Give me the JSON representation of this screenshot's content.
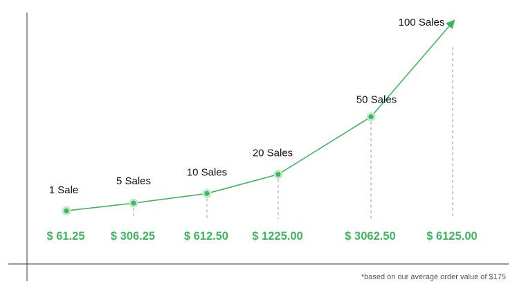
{
  "chart_data": {
    "type": "line",
    "colors": {
      "line": "#3fb560",
      "point": "#3fb560",
      "point_halo": "#bfe8c9",
      "value_label": "#3fb560",
      "sales_label": "#111111",
      "axis": "#333333",
      "drop_line": "#9a9a9a"
    },
    "points": [
      {
        "sales": 1,
        "sales_label": "1 Sale",
        "value": 61.25,
        "value_label": "$ 61.25"
      },
      {
        "sales": 5,
        "sales_label": "5 Sales",
        "value": 306.25,
        "value_label": "$ 306.25"
      },
      {
        "sales": 10,
        "sales_label": "10 Sales",
        "value": 612.5,
        "value_label": "$ 612.50"
      },
      {
        "sales": 20,
        "sales_label": "20 Sales",
        "value": 1225.0,
        "value_label": "$ 1225.00"
      },
      {
        "sales": 50,
        "sales_label": "50 Sales",
        "value": 3062.5,
        "value_label": "$ 3062.50"
      },
      {
        "sales": 100,
        "sales_label": "100 Sales",
        "value": 6125.0,
        "value_label": "$ 6125.00"
      }
    ],
    "last_point_arrow": true,
    "grid": false,
    "legend": "none",
    "footnote": "*based on our average order value of $175"
  }
}
